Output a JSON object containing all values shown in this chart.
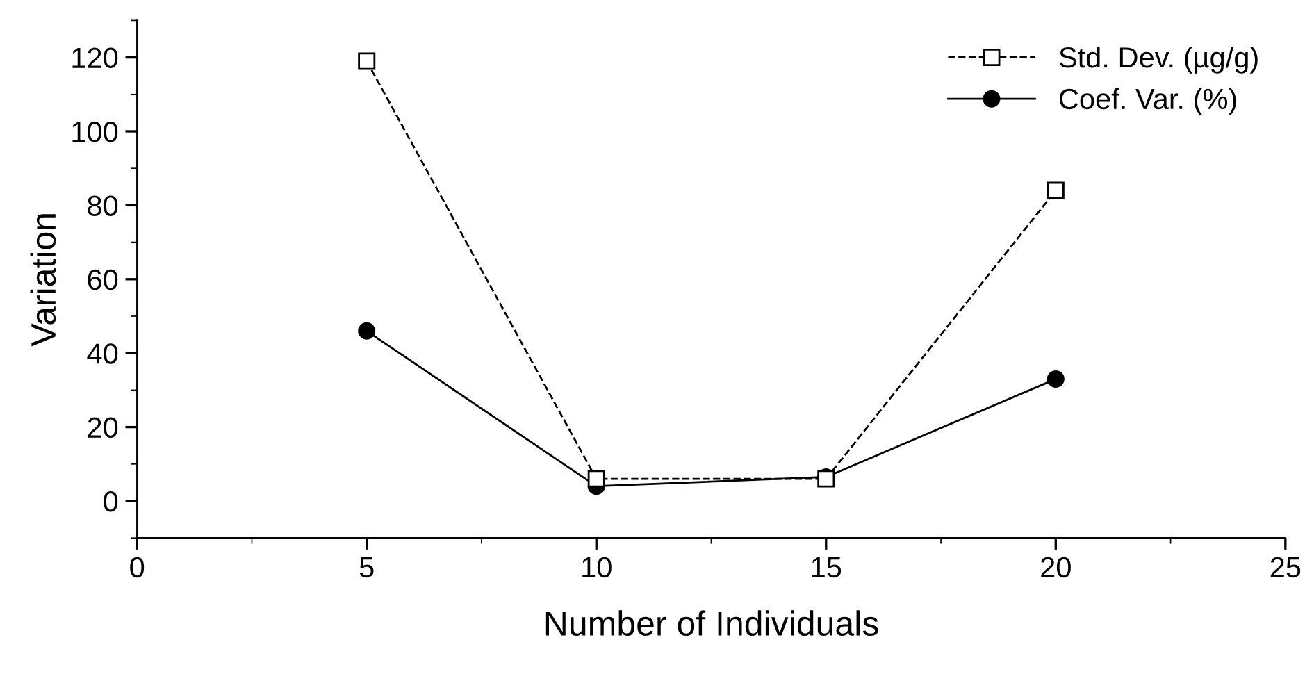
{
  "chart_data": {
    "type": "line",
    "xlabel": "Number of Individuals",
    "ylabel": "Variation",
    "x": [
      5,
      10,
      15,
      20
    ],
    "series": [
      {
        "name": "Std. Dev. (µg/g)",
        "color": "#000000",
        "values": [
          119,
          6,
          6,
          84
        ],
        "marker": "square",
        "line_style": "dashed"
      },
      {
        "name": "Coef. Var. (%)",
        "color": "#000000",
        "values": [
          46,
          4,
          6.5,
          33
        ],
        "marker": "circle",
        "line_style": "solid"
      }
    ],
    "xlim": [
      0,
      25
    ],
    "xticks": [
      0,
      5,
      10,
      15,
      20,
      25
    ],
    "ylim": [
      -10,
      130
    ],
    "yticks": [
      0,
      20,
      40,
      60,
      80,
      100,
      120
    ],
    "grid": false,
    "legend": "top right"
  }
}
